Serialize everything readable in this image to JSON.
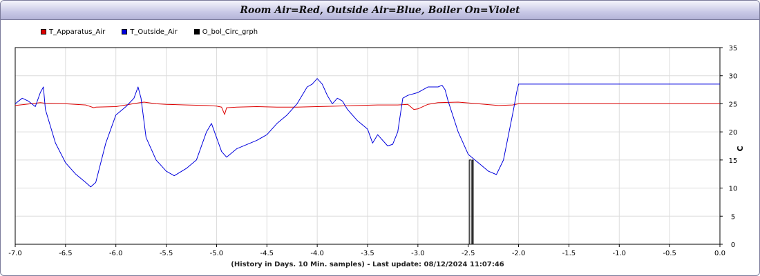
{
  "chart_data": {
    "type": "line",
    "title": "Room Air=Red, Outside Air=Blue, Boiler On=Violet",
    "xlabel": "(History in Days. 10 Min. samples) - Last update: 08/12/2024 11:07:46",
    "ylabel": "C",
    "xlim": [
      -7.0,
      0.0
    ],
    "ylim": [
      0,
      35
    ],
    "x_ticks": [
      "-7.0",
      "-6.5",
      "-6.0",
      "-5.5",
      "-5.0",
      "-4.5",
      "-4.0",
      "-3.5",
      "-3.0",
      "-2.5",
      "-2.0",
      "-1.5",
      "-1.0",
      "-0.5",
      "0.0"
    ],
    "y_ticks": [
      "0",
      "5",
      "10",
      "15",
      "20",
      "25",
      "30",
      "35"
    ],
    "grid": true,
    "legend_position": "top-left",
    "series": [
      {
        "name": "T_Apparatus_Air",
        "color": "#dd0000",
        "x": [
          -7.0,
          -6.9,
          -6.8,
          -6.75,
          -6.7,
          -6.5,
          -6.3,
          -6.22,
          -6.2,
          -6.0,
          -5.9,
          -5.8,
          -5.72,
          -5.6,
          -5.5,
          -5.3,
          -5.1,
          -5.0,
          -4.95,
          -4.92,
          -4.9,
          -4.8,
          -4.6,
          -4.4,
          -4.2,
          -4.0,
          -3.8,
          -3.6,
          -3.4,
          -3.2,
          -3.1,
          -3.04,
          -3.0,
          -2.9,
          -2.8,
          -2.6,
          -2.4,
          -2.2,
          -2.06,
          -2.0,
          -1.0,
          0.0
        ],
        "values": [
          24.7,
          24.9,
          25.1,
          25.2,
          25.1,
          25.0,
          24.8,
          24.3,
          24.4,
          24.5,
          24.8,
          25.1,
          25.3,
          25.0,
          24.9,
          24.8,
          24.7,
          24.6,
          24.4,
          23.1,
          24.3,
          24.4,
          24.5,
          24.4,
          24.4,
          24.5,
          24.6,
          24.7,
          24.8,
          24.8,
          24.9,
          24.0,
          24.1,
          24.9,
          25.2,
          25.3,
          25.0,
          24.7,
          24.8,
          25.0,
          25.0,
          25.0
        ]
      },
      {
        "name": "T_Outside_Air",
        "color": "#0000dd",
        "x": [
          -7.0,
          -6.93,
          -6.87,
          -6.8,
          -6.75,
          -6.72,
          -6.7,
          -6.6,
          -6.5,
          -6.4,
          -6.3,
          -6.25,
          -6.2,
          -6.1,
          -6.0,
          -5.9,
          -5.82,
          -5.78,
          -5.75,
          -5.7,
          -5.6,
          -5.5,
          -5.42,
          -5.3,
          -5.2,
          -5.1,
          -5.05,
          -5.0,
          -4.95,
          -4.9,
          -4.8,
          -4.6,
          -4.5,
          -4.4,
          -4.3,
          -4.2,
          -4.1,
          -4.05,
          -4.0,
          -3.95,
          -3.9,
          -3.85,
          -3.8,
          -3.75,
          -3.7,
          -3.6,
          -3.5,
          -3.45,
          -3.4,
          -3.3,
          -3.25,
          -3.2,
          -3.15,
          -3.1,
          -3.0,
          -2.9,
          -2.8,
          -2.76,
          -2.73,
          -2.7,
          -2.6,
          -2.5,
          -2.4,
          -2.3,
          -2.22,
          -2.15,
          -2.05,
          -2.02,
          -2.0,
          -1.5,
          -1.0,
          -0.5,
          0.0
        ],
        "values": [
          25.0,
          26.0,
          25.5,
          24.5,
          27.0,
          28.0,
          24.0,
          18.0,
          14.5,
          12.5,
          11.0,
          10.2,
          11.0,
          18.0,
          23.0,
          24.5,
          26.0,
          28.0,
          26.0,
          19.0,
          15.0,
          13.0,
          12.2,
          13.5,
          15.0,
          20.0,
          21.5,
          19.0,
          16.5,
          15.5,
          17.0,
          18.5,
          19.5,
          21.5,
          23.0,
          25.0,
          28.0,
          28.5,
          29.5,
          28.5,
          26.5,
          25.0,
          26.0,
          25.5,
          24.0,
          22.0,
          20.5,
          18.0,
          19.5,
          17.5,
          17.8,
          20.0,
          26.0,
          26.5,
          27.0,
          28.0,
          28.0,
          28.3,
          27.5,
          25.5,
          20.0,
          16.0,
          14.5,
          13.0,
          12.4,
          15.0,
          24.0,
          27.0,
          28.5,
          28.5,
          28.5,
          28.5,
          28.5
        ]
      },
      {
        "name": "O_bol_Circ_grph",
        "color": "#000000",
        "x": [
          -7.0,
          -2.49,
          -2.49,
          -2.47,
          -2.47,
          -2.46,
          -2.46,
          -2.45,
          -2.45,
          0.0
        ],
        "values": [
          0,
          0,
          15.0,
          15.0,
          0,
          0,
          15.0,
          15.0,
          0,
          0
        ]
      }
    ]
  }
}
